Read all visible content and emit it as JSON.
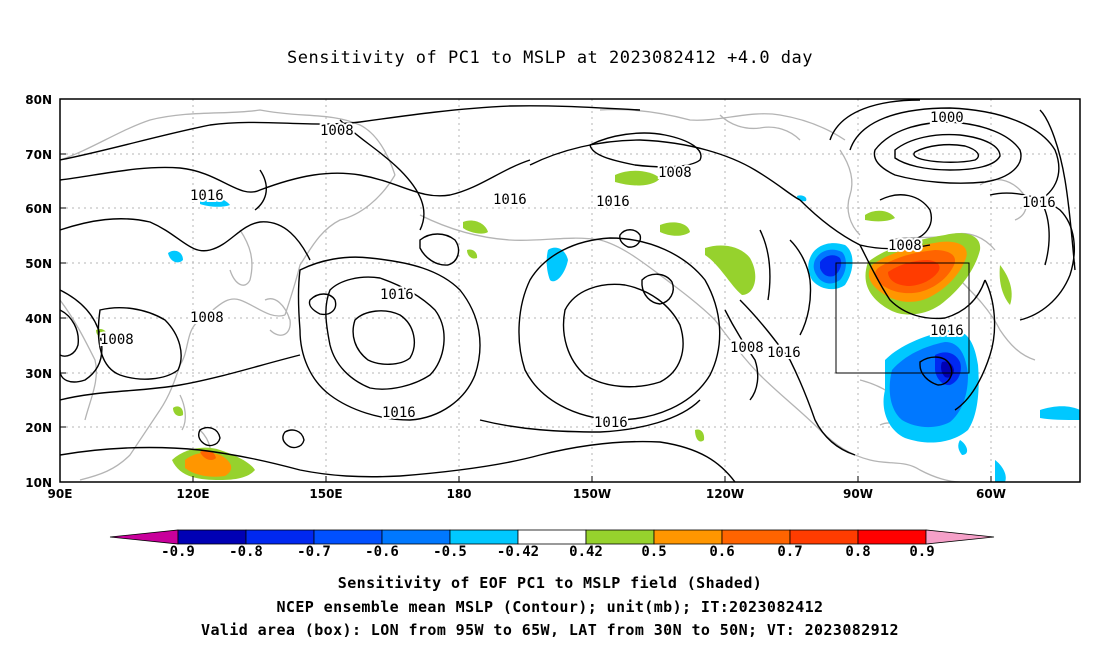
{
  "title": "Sensitivity of PC1 to MSLP at 2023082412 +4.0 day",
  "map": {
    "lat_labels": [
      "80N",
      "70N",
      "60N",
      "50N",
      "40N",
      "30N",
      "20N",
      "10N"
    ],
    "lon_labels": [
      "90E",
      "120E",
      "150E",
      "180",
      "150W",
      "120W",
      "90W",
      "60W"
    ],
    "contour_labels": [
      "1008",
      "1016",
      "1000",
      "1008",
      "1016",
      "1016",
      "1016",
      "1016",
      "1008",
      "1008",
      "1016",
      "1016",
      "1016",
      "1008",
      "1016",
      "1008"
    ],
    "valid_box": {
      "lon_from": "95W",
      "lon_to": "65W",
      "lat_from": "30N",
      "lat_to": "50N"
    }
  },
  "colorbar": {
    "labels": [
      "-0.9",
      "-0.8",
      "-0.7",
      "-0.6",
      "-0.5",
      "-0.42",
      "0.42",
      "0.5",
      "0.6",
      "0.7",
      "0.8",
      "0.9"
    ],
    "colors": [
      "#0000b4",
      "#0028f0",
      "#0050ff",
      "#0078ff",
      "#00c8ff",
      "#ffffff",
      "#96d22d",
      "#ff9600",
      "#ff6400",
      "#ff3c00",
      "#ff0000"
    ],
    "low_extend_color": "#c8009b",
    "high_extend_color": "#f5a0c8"
  },
  "captions": {
    "line1": "Sensitivity of EOF PC1 to MSLP field (Shaded)",
    "line2": "NCEP ensemble mean MSLP (Contour); unit(mb); IT:2023082412",
    "line3": "Valid area (box): LON from 95W to 65W, LAT from 30N to 50N; VT: 2023082912"
  }
}
